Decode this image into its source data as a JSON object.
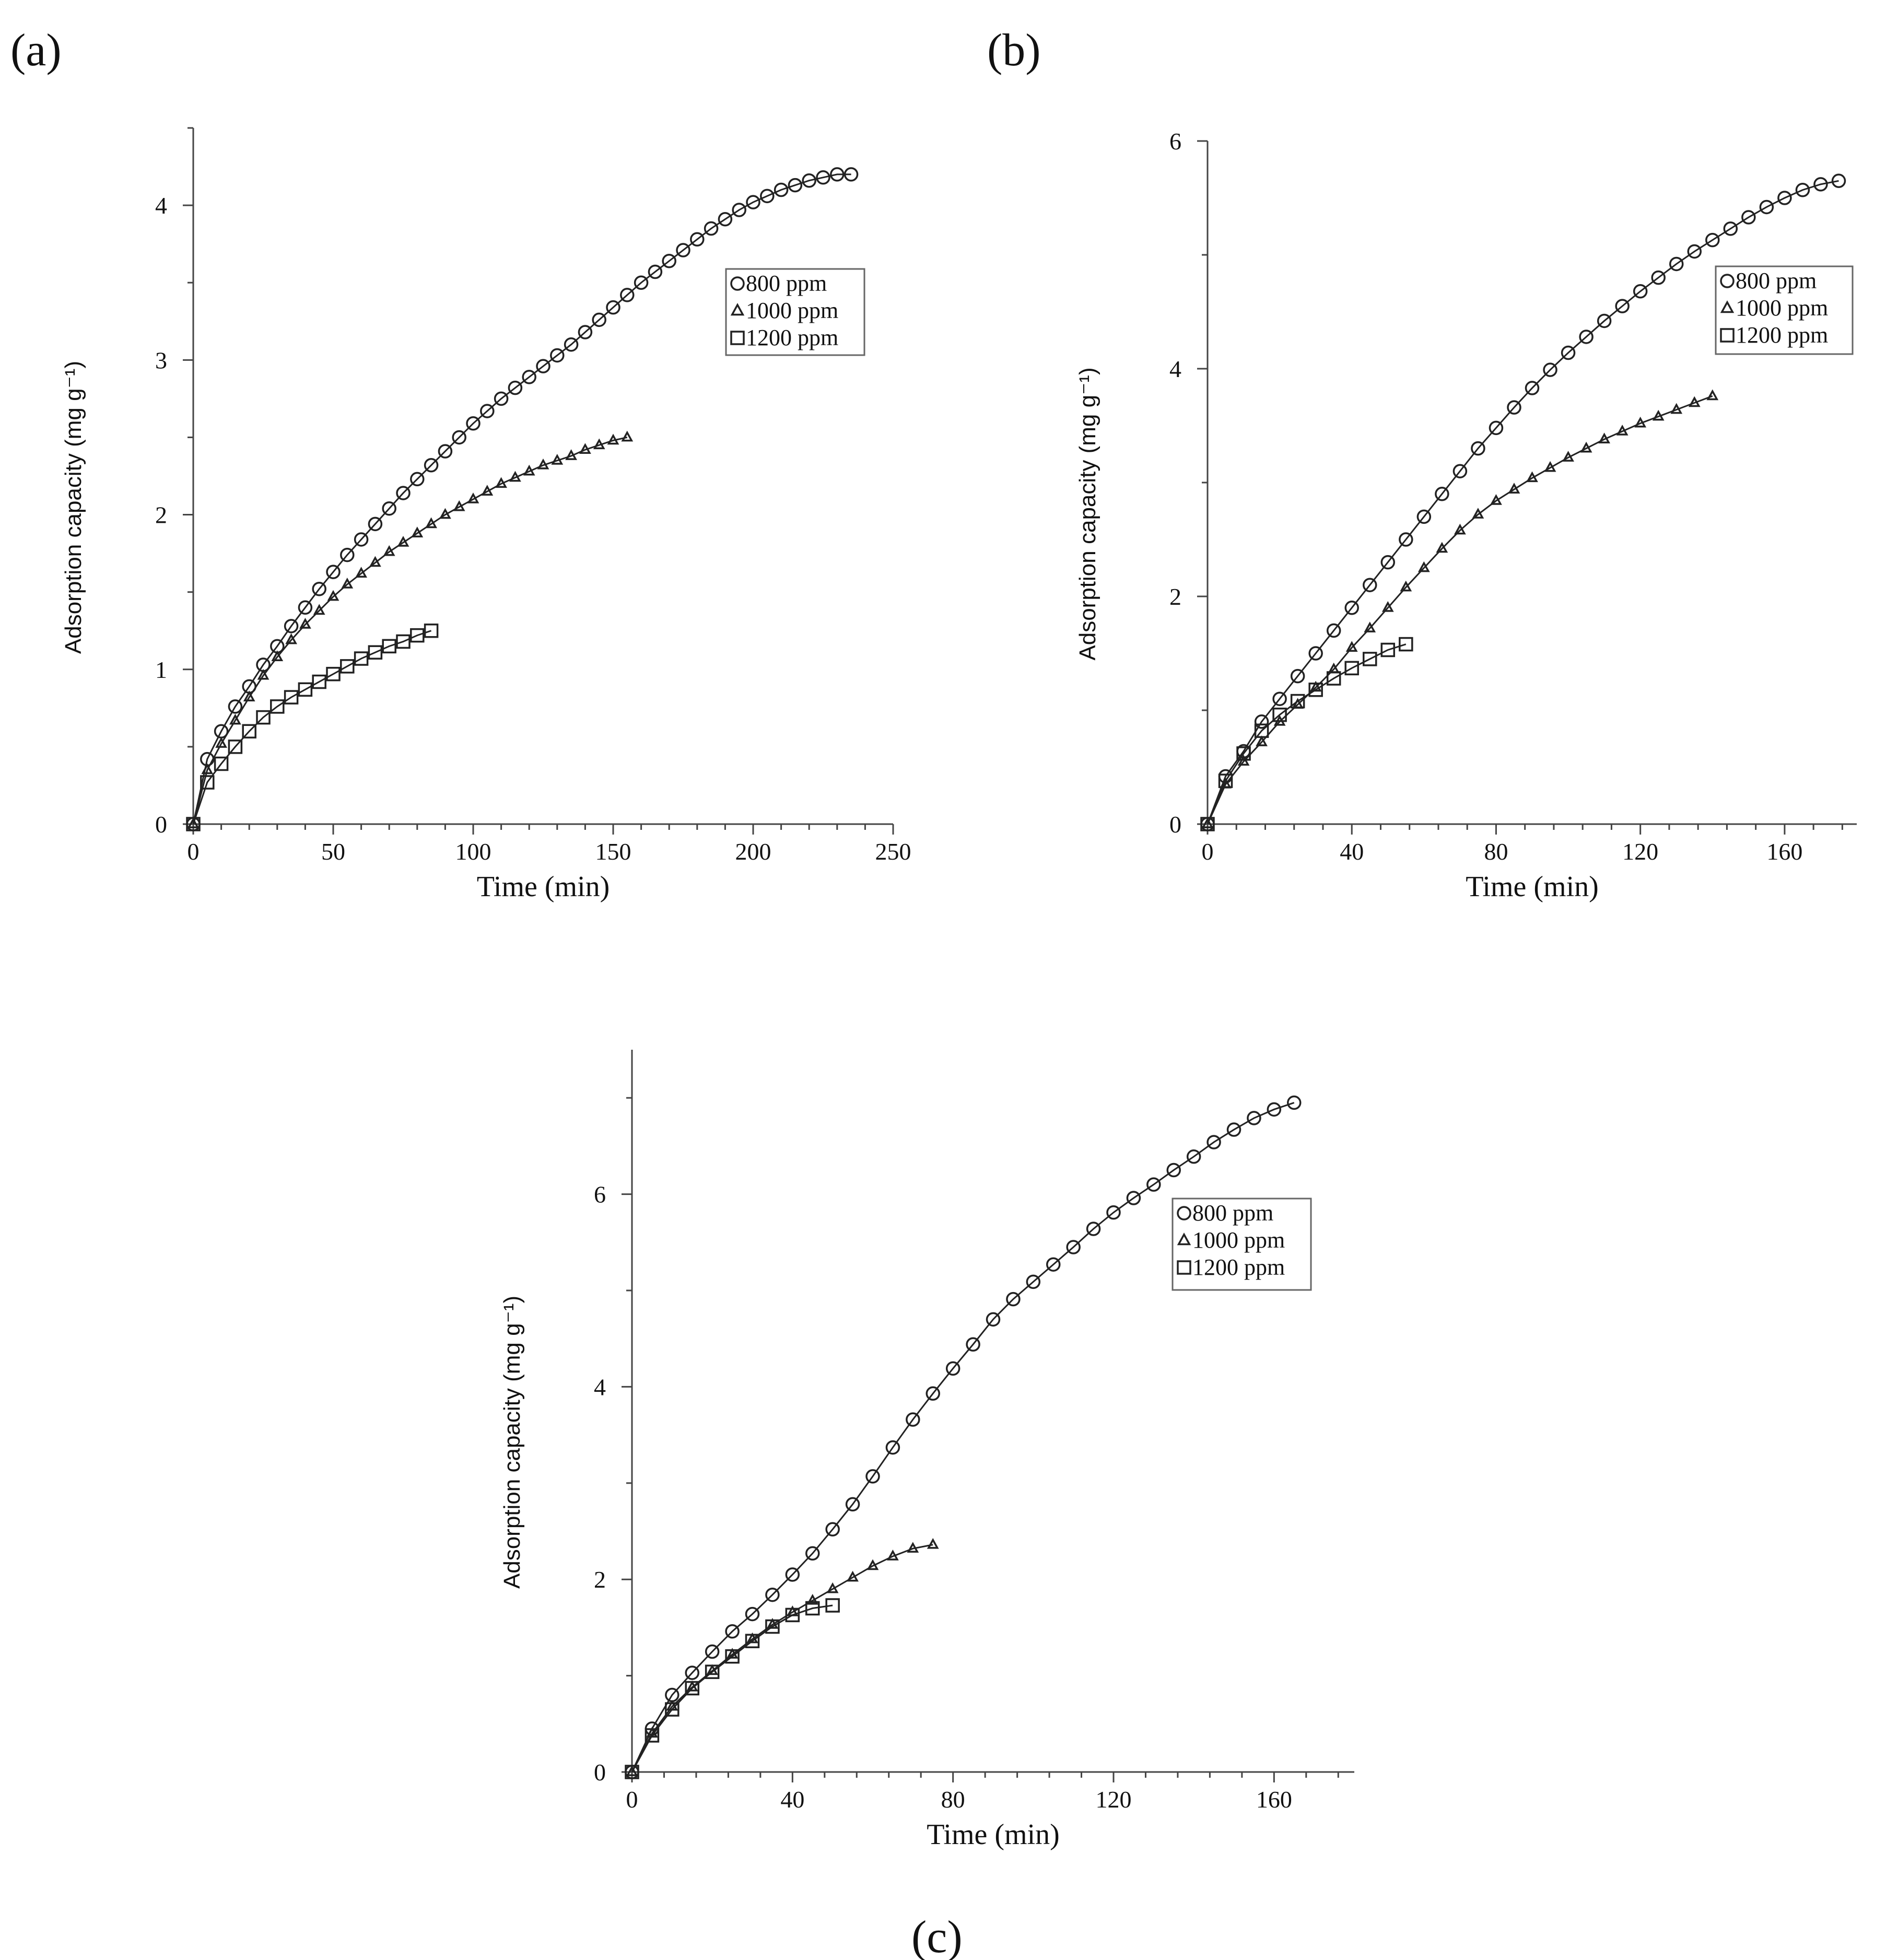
{
  "figure": {
    "panel_labels": [
      "(a)",
      "(b)",
      "(c)"
    ]
  },
  "chart_data": [
    {
      "type": "scatter",
      "panel": "(a)",
      "xlabel": "Time (min)",
      "ylabel": "Adsorption capacity (mg g⁻¹)",
      "xlim": [
        0,
        250
      ],
      "ylim": [
        0,
        4.5
      ],
      "xticks": [
        0,
        50,
        100,
        150,
        200,
        250
      ],
      "yticks": [
        0,
        1,
        2,
        3,
        4
      ],
      "legend_position": "top-right",
      "grid": false,
      "series": [
        {
          "name": "800 ppm",
          "marker": "circle",
          "x": [
            0,
            5,
            10,
            15,
            20,
            25,
            30,
            35,
            40,
            45,
            50,
            55,
            60,
            65,
            70,
            75,
            80,
            85,
            90,
            95,
            100,
            105,
            110,
            115,
            120,
            125,
            130,
            135,
            140,
            145,
            150,
            155,
            160,
            165,
            170,
            175,
            180,
            185,
            190,
            195,
            200,
            205,
            210,
            215,
            220,
            225,
            230,
            235
          ],
          "y": [
            0,
            0.42,
            0.6,
            0.76,
            0.89,
            1.03,
            1.15,
            1.28,
            1.4,
            1.52,
            1.63,
            1.74,
            1.84,
            1.94,
            2.04,
            2.14,
            2.23,
            2.32,
            2.41,
            2.5,
            2.59,
            2.67,
            2.75,
            2.82,
            2.89,
            2.96,
            3.03,
            3.1,
            3.18,
            3.26,
            3.34,
            3.42,
            3.5,
            3.57,
            3.64,
            3.71,
            3.78,
            3.85,
            3.91,
            3.97,
            4.02,
            4.06,
            4.1,
            4.13,
            4.16,
            4.18,
            4.2,
            4.2
          ]
        },
        {
          "name": "1000 ppm",
          "marker": "triangle",
          "x": [
            0,
            5,
            10,
            15,
            20,
            25,
            30,
            35,
            40,
            45,
            50,
            55,
            60,
            65,
            70,
            75,
            80,
            85,
            90,
            95,
            100,
            105,
            110,
            115,
            120,
            125,
            130,
            135,
            140,
            145,
            150,
            155
          ],
          "y": [
            0,
            0.35,
            0.52,
            0.67,
            0.82,
            0.96,
            1.08,
            1.19,
            1.29,
            1.38,
            1.47,
            1.55,
            1.62,
            1.69,
            1.76,
            1.82,
            1.88,
            1.94,
            2.0,
            2.05,
            2.1,
            2.15,
            2.2,
            2.24,
            2.28,
            2.32,
            2.35,
            2.38,
            2.42,
            2.45,
            2.48,
            2.5
          ]
        },
        {
          "name": "1200 ppm",
          "marker": "square",
          "x": [
            0,
            5,
            10,
            15,
            20,
            25,
            30,
            35,
            40,
            45,
            50,
            55,
            60,
            65,
            70,
            75,
            80,
            85
          ],
          "y": [
            0,
            0.27,
            0.39,
            0.5,
            0.6,
            0.69,
            0.76,
            0.82,
            0.87,
            0.92,
            0.97,
            1.02,
            1.07,
            1.11,
            1.15,
            1.18,
            1.22,
            1.25
          ]
        }
      ]
    },
    {
      "type": "scatter",
      "panel": "(b)",
      "xlabel": "Time (min)",
      "ylabel": "Adsorption capacity (mg g⁻¹)",
      "xlim": [
        0,
        180
      ],
      "ylim": [
        0,
        6
      ],
      "xticks": [
        0,
        40,
        80,
        120,
        160
      ],
      "yticks": [
        0,
        2,
        4,
        6
      ],
      "legend_position": "top-right",
      "grid": false,
      "series": [
        {
          "name": "800 ppm",
          "marker": "circle",
          "x": [
            0,
            5,
            10,
            15,
            20,
            25,
            30,
            35,
            40,
            45,
            50,
            55,
            60,
            65,
            70,
            75,
            80,
            85,
            90,
            95,
            100,
            105,
            110,
            115,
            120,
            125,
            130,
            135,
            140,
            145,
            150,
            155,
            160,
            165,
            170,
            175
          ],
          "y": [
            0,
            0.42,
            0.64,
            0.9,
            1.1,
            1.3,
            1.5,
            1.7,
            1.9,
            2.1,
            2.3,
            2.5,
            2.7,
            2.9,
            3.1,
            3.3,
            3.48,
            3.66,
            3.83,
            3.99,
            4.14,
            4.28,
            4.42,
            4.55,
            4.68,
            4.8,
            4.92,
            5.03,
            5.13,
            5.23,
            5.33,
            5.42,
            5.5,
            5.57,
            5.62,
            5.65
          ]
        },
        {
          "name": "1000 ppm",
          "marker": "triangle",
          "x": [
            0,
            5,
            10,
            15,
            20,
            25,
            30,
            35,
            40,
            45,
            50,
            55,
            60,
            65,
            70,
            75,
            80,
            85,
            90,
            95,
            100,
            105,
            110,
            115,
            120,
            125,
            130,
            135,
            140
          ],
          "y": [
            0,
            0.35,
            0.55,
            0.72,
            0.9,
            1.05,
            1.2,
            1.36,
            1.55,
            1.72,
            1.9,
            2.08,
            2.25,
            2.42,
            2.58,
            2.72,
            2.84,
            2.94,
            3.04,
            3.13,
            3.22,
            3.3,
            3.38,
            3.45,
            3.52,
            3.58,
            3.64,
            3.7,
            3.76
          ]
        },
        {
          "name": "1200 ppm",
          "marker": "square",
          "x": [
            0,
            5,
            10,
            15,
            20,
            25,
            30,
            35,
            40,
            45,
            50,
            55
          ],
          "y": [
            0,
            0.38,
            0.62,
            0.82,
            0.96,
            1.08,
            1.18,
            1.28,
            1.37,
            1.45,
            1.53,
            1.58
          ]
        }
      ]
    },
    {
      "type": "scatter",
      "panel": "(c)",
      "xlabel": "Time (min)",
      "ylabel": "Adsorption capacity (mg g⁻¹)",
      "xlim": [
        0,
        180
      ],
      "ylim": [
        0,
        7.5
      ],
      "xticks": [
        0,
        40,
        80,
        120,
        160
      ],
      "yticks": [
        0,
        2,
        4,
        6
      ],
      "legend_position": "top-right",
      "grid": false,
      "series": [
        {
          "name": "800 ppm",
          "marker": "circle",
          "x": [
            0,
            5,
            10,
            15,
            20,
            25,
            30,
            35,
            40,
            45,
            50,
            55,
            60,
            65,
            70,
            75,
            80,
            85,
            90,
            95,
            100,
            105,
            110,
            115,
            120,
            125,
            130,
            135,
            140,
            145,
            150,
            155,
            160,
            165
          ],
          "y": [
            0,
            0.45,
            0.8,
            1.03,
            1.25,
            1.46,
            1.64,
            1.84,
            2.05,
            2.27,
            2.52,
            2.78,
            3.07,
            3.37,
            3.66,
            3.93,
            4.19,
            4.44,
            4.7,
            4.91,
            5.09,
            5.27,
            5.45,
            5.64,
            5.81,
            5.96,
            6.1,
            6.25,
            6.39,
            6.54,
            6.67,
            6.79,
            6.88,
            6.95
          ]
        },
        {
          "name": "1000 ppm",
          "marker": "triangle",
          "x": [
            0,
            5,
            10,
            15,
            20,
            25,
            30,
            35,
            40,
            45,
            50,
            55,
            60,
            65,
            70,
            75
          ],
          "y": [
            0,
            0.4,
            0.68,
            0.88,
            1.05,
            1.22,
            1.38,
            1.53,
            1.66,
            1.78,
            1.9,
            2.02,
            2.14,
            2.24,
            2.32,
            2.36
          ]
        },
        {
          "name": "1200 ppm",
          "marker": "square",
          "x": [
            0,
            5,
            10,
            15,
            20,
            25,
            30,
            35,
            40,
            45,
            50
          ],
          "y": [
            0,
            0.38,
            0.65,
            0.87,
            1.04,
            1.2,
            1.36,
            1.51,
            1.63,
            1.7,
            1.73
          ]
        }
      ]
    }
  ]
}
